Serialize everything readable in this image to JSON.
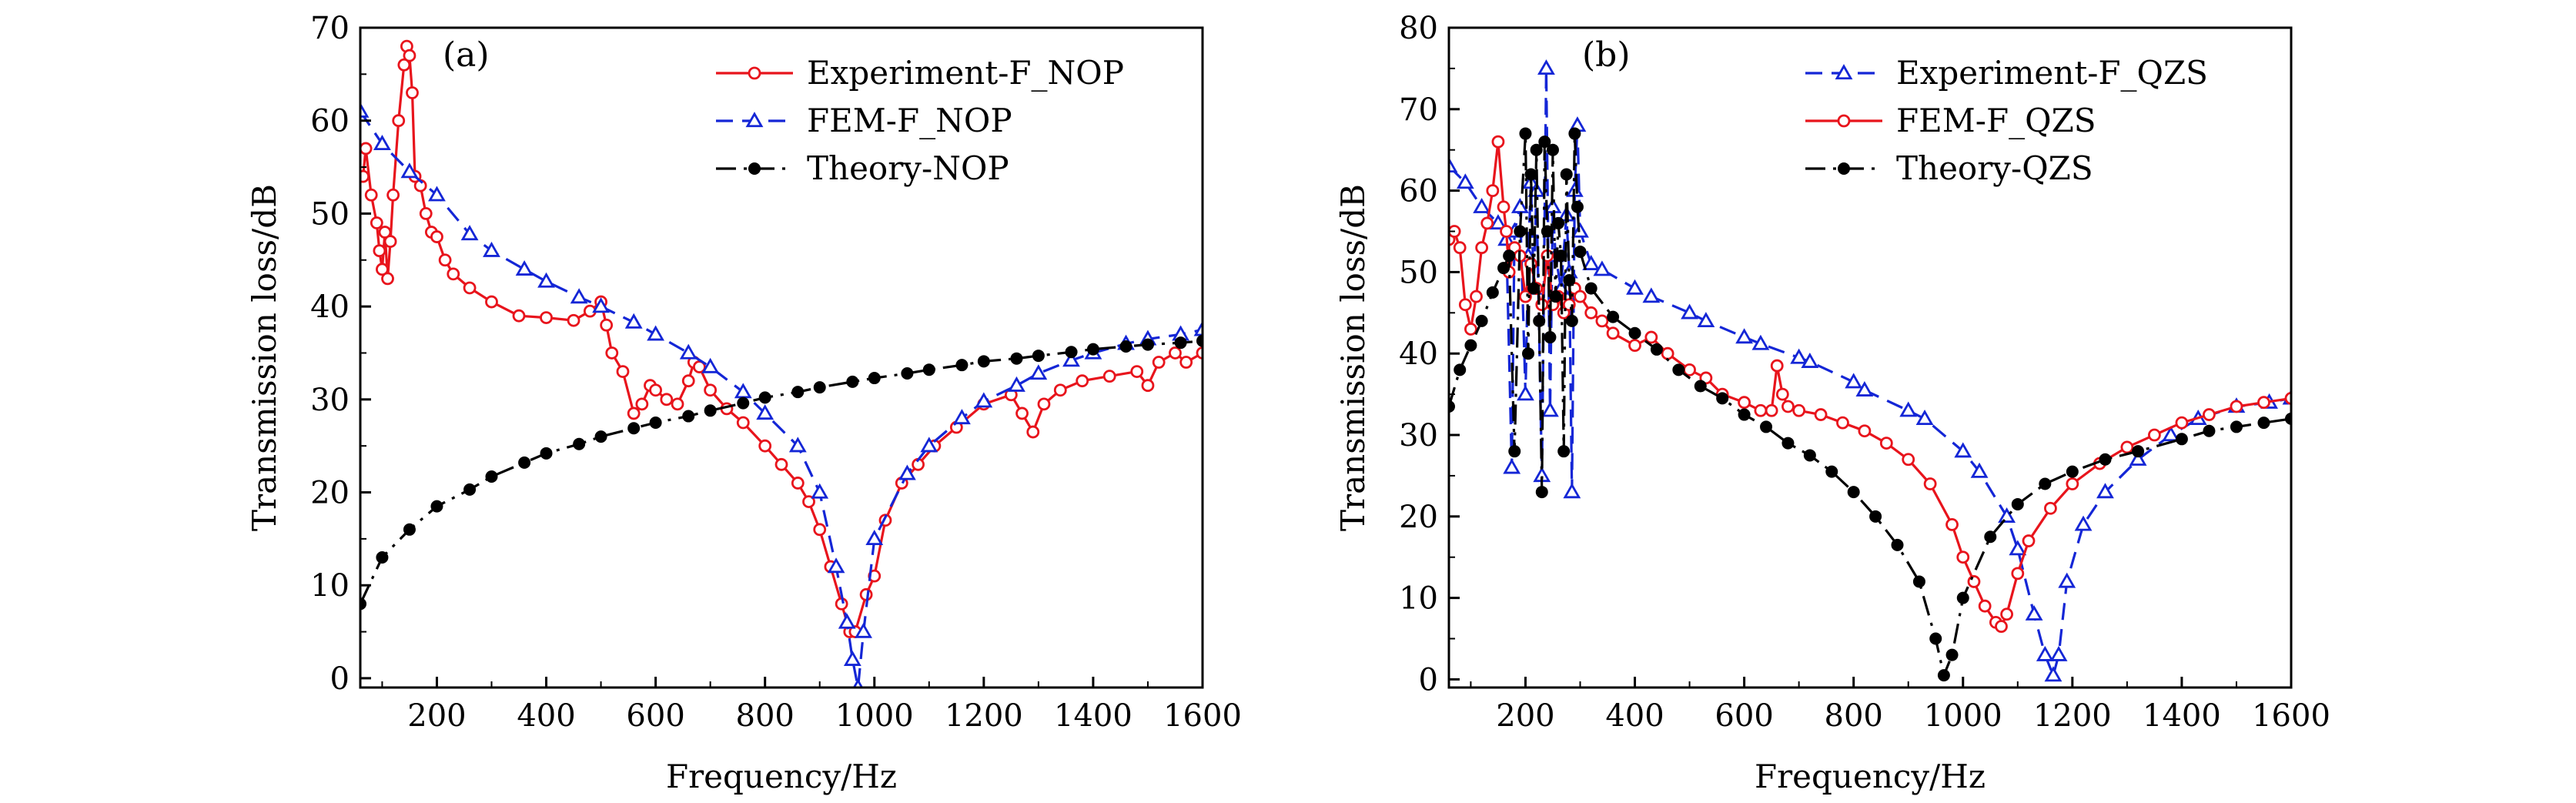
{
  "chart_data": [
    {
      "panel_label": "(a)",
      "type": "line",
      "xlabel": "Frequency/Hz",
      "ylabel": "Transmission loss/dB",
      "xlim": [
        60,
        1600
      ],
      "ylim": [
        -1,
        70
      ],
      "xticks": [
        200,
        400,
        600,
        800,
        1000,
        1200,
        1400,
        1600
      ],
      "yticks": [
        0,
        10,
        20,
        30,
        40,
        50,
        60,
        70
      ],
      "legend_position": "top-right",
      "series": [
        {
          "name": "Experiment-F_NOP",
          "color": "#e8141c",
          "marker": "circle-open",
          "dash": "solid",
          "x": [
            65,
            70,
            80,
            90,
            95,
            100,
            105,
            110,
            115,
            120,
            130,
            140,
            145,
            150,
            155,
            160,
            170,
            180,
            190,
            200,
            215,
            230,
            260,
            300,
            350,
            400,
            450,
            480,
            500,
            510,
            520,
            540,
            560,
            575,
            590,
            600,
            620,
            640,
            660,
            670,
            680,
            700,
            730,
            760,
            800,
            830,
            860,
            880,
            900,
            920,
            940,
            955,
            965,
            985,
            1000,
            1020,
            1050,
            1080,
            1110,
            1150,
            1200,
            1250,
            1270,
            1290,
            1310,
            1340,
            1380,
            1430,
            1480,
            1500,
            1520,
            1550,
            1570,
            1600
          ],
          "y": [
            54,
            57,
            52,
            49,
            46,
            44,
            48,
            43,
            47,
            52,
            60,
            66,
            68,
            67,
            63,
            54,
            53,
            50,
            48,
            47.5,
            45,
            43.5,
            42,
            40.5,
            39,
            38.8,
            38.5,
            39.5,
            40.5,
            38,
            35,
            33,
            28.5,
            29.5,
            31.5,
            31,
            30,
            29.5,
            32,
            34,
            33.5,
            31,
            29,
            27.5,
            25,
            23,
            21,
            19,
            16,
            12,
            8,
            5,
            5,
            9,
            11,
            17,
            21,
            23,
            25,
            27,
            29.5,
            30.5,
            28.5,
            26.5,
            29.5,
            31,
            32,
            32.5,
            33,
            31.5,
            34,
            35,
            34,
            35
          ]
        },
        {
          "name": "FEM-F_NOP",
          "color": "#1426d6",
          "marker": "triangle-open",
          "dash": "dashed",
          "x": [
            60,
            100,
            150,
            200,
            260,
            300,
            360,
            400,
            460,
            500,
            560,
            600,
            660,
            700,
            760,
            800,
            860,
            900,
            930,
            950,
            960,
            970,
            980,
            1000,
            1060,
            1100,
            1160,
            1200,
            1260,
            1300,
            1360,
            1400,
            1460,
            1500,
            1560,
            1600
          ],
          "y": [
            61,
            57.5,
            54.5,
            52,
            47.8,
            46,
            44,
            42.7,
            41,
            40,
            38.3,
            37,
            35,
            33.5,
            30.8,
            28.5,
            25,
            20,
            12,
            6,
            2,
            -1,
            5,
            15,
            22,
            25,
            28,
            29.8,
            31.5,
            32.8,
            34.2,
            35,
            36,
            36.5,
            37,
            37.5
          ]
        },
        {
          "name": "Theory-NOP",
          "color": "#000000",
          "marker": "circle-filled",
          "dash": "dash-dot",
          "x": [
            60,
            100,
            150,
            200,
            260,
            300,
            360,
            400,
            460,
            500,
            560,
            600,
            660,
            700,
            760,
            800,
            860,
            900,
            960,
            1000,
            1060,
            1100,
            1160,
            1200,
            1260,
            1300,
            1360,
            1400,
            1460,
            1500,
            1560,
            1600
          ],
          "y": [
            8,
            13,
            16,
            18.5,
            20.3,
            21.7,
            23.2,
            24.2,
            25.2,
            26,
            26.9,
            27.5,
            28.2,
            28.8,
            29.6,
            30.2,
            30.8,
            31.3,
            31.9,
            32.3,
            32.8,
            33.2,
            33.7,
            34.1,
            34.4,
            34.7,
            35.1,
            35.4,
            35.7,
            35.9,
            36.1,
            36.3
          ]
        }
      ]
    },
    {
      "panel_label": "(b)",
      "type": "line",
      "xlabel": "Frequency/Hz",
      "ylabel": "Transmission loss/dB",
      "xlim": [
        60,
        1600
      ],
      "ylim": [
        -1,
        80
      ],
      "xticks": [
        200,
        400,
        600,
        800,
        1000,
        1200,
        1400,
        1600
      ],
      "yticks": [
        0,
        10,
        20,
        30,
        40,
        50,
        60,
        70,
        80
      ],
      "legend_position": "top-right",
      "series": [
        {
          "name": "Experiment-F_QZS",
          "color": "#1426d6",
          "marker": "triangle-open",
          "dash": "dashed",
          "x": [
            60,
            90,
            120,
            150,
            165,
            175,
            180,
            190,
            200,
            205,
            210,
            215,
            220,
            230,
            238,
            245,
            250,
            255,
            265,
            275,
            280,
            285,
            290,
            295,
            300,
            320,
            340,
            400,
            430,
            500,
            530,
            600,
            630,
            700,
            720,
            800,
            820,
            900,
            930,
            1000,
            1030,
            1080,
            1100,
            1130,
            1150,
            1165,
            1175,
            1190,
            1220,
            1260,
            1320,
            1380,
            1430,
            1500,
            1560,
            1600
          ],
          "y": [
            63,
            61,
            58,
            56,
            54,
            26,
            55,
            58,
            35,
            52,
            61,
            48,
            60,
            25,
            75,
            33,
            58,
            52,
            48,
            57,
            50,
            23,
            60,
            68,
            55,
            51,
            50.3,
            48,
            47,
            45,
            44,
            42,
            41.2,
            39.5,
            39,
            36.5,
            35.5,
            33,
            32,
            28,
            25.5,
            20,
            16,
            8,
            3,
            0.5,
            3,
            12,
            19,
            23,
            27,
            30,
            32,
            33.5,
            34,
            34.5
          ]
        },
        {
          "name": "FEM-F_QZS",
          "color": "#e8141c",
          "marker": "circle-open",
          "dash": "solid",
          "x": [
            60,
            70,
            80,
            90,
            100,
            110,
            120,
            130,
            140,
            150,
            160,
            165,
            170,
            180,
            190,
            200,
            210,
            220,
            230,
            240,
            250,
            260,
            270,
            280,
            290,
            300,
            320,
            340,
            360,
            400,
            430,
            460,
            500,
            530,
            560,
            600,
            630,
            650,
            660,
            670,
            680,
            700,
            740,
            780,
            820,
            860,
            900,
            940,
            980,
            1000,
            1020,
            1040,
            1060,
            1070,
            1080,
            1100,
            1120,
            1160,
            1200,
            1250,
            1300,
            1350,
            1400,
            1450,
            1500,
            1550,
            1600
          ],
          "y": [
            54,
            55,
            53,
            46,
            43,
            47,
            53,
            56,
            60,
            66,
            58,
            55,
            50,
            53,
            52,
            47,
            51,
            48,
            46,
            52,
            46,
            47,
            45,
            46,
            48,
            47,
            45,
            44,
            42.5,
            41,
            42,
            40,
            38,
            37,
            35,
            34,
            33,
            33,
            38.5,
            35,
            33.5,
            33,
            32.5,
            31.5,
            30.5,
            29,
            27,
            24,
            19,
            15,
            12,
            9,
            7,
            6.5,
            8,
            13,
            17,
            21,
            24,
            26.5,
            28.5,
            30,
            31.5,
            32.5,
            33.5,
            34,
            34.5
          ]
        },
        {
          "name": "Theory-QZS",
          "color": "#000000",
          "marker": "circle-filled",
          "dash": "dash-dot",
          "x": [
            60,
            80,
            100,
            120,
            140,
            160,
            170,
            180,
            190,
            200,
            205,
            210,
            215,
            220,
            225,
            230,
            235,
            240,
            245,
            250,
            255,
            260,
            265,
            270,
            275,
            280,
            285,
            290,
            295,
            300,
            320,
            360,
            400,
            440,
            480,
            520,
            560,
            600,
            640,
            680,
            720,
            760,
            800,
            840,
            880,
            920,
            950,
            965,
            980,
            1000,
            1050,
            1100,
            1150,
            1200,
            1260,
            1320,
            1400,
            1450,
            1500,
            1550,
            1600
          ],
          "y": [
            33.5,
            38,
            41,
            44,
            47.5,
            50.5,
            52,
            28,
            55,
            67,
            40,
            62,
            48,
            65,
            44,
            23,
            66,
            55,
            42,
            65,
            47,
            56,
            52,
            28,
            62,
            49,
            44,
            67,
            58,
            52.5,
            48,
            44.5,
            42.5,
            40.5,
            38,
            36,
            34.5,
            32.5,
            31,
            29,
            27.5,
            25.5,
            23,
            20,
            16.5,
            12,
            5,
            0.5,
            3,
            10,
            17.5,
            21.5,
            24,
            25.5,
            27,
            28,
            29.5,
            30.5,
            31,
            31.5,
            32
          ]
        }
      ]
    }
  ]
}
